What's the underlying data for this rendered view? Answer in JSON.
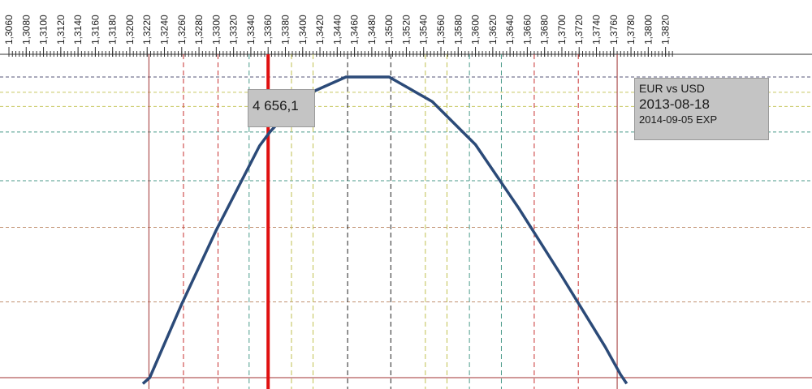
{
  "chart_data": {
    "type": "line",
    "x_tick_labels": [
      "1,3060",
      "1,3080",
      "1,3100",
      "1,3120",
      "1,3140",
      "1,3160",
      "1,3180",
      "1,3200",
      "1,3220",
      "1,3240",
      "1,3260",
      "1,3280",
      "1,3300",
      "1,3320",
      "1,3340",
      "1,3360",
      "1,3380",
      "1,3400",
      "1,3420",
      "1,3440",
      "1,3460",
      "1,3480",
      "1,3500",
      "1,3520",
      "1,3540",
      "1,3560",
      "1,3580",
      "1,3600",
      "1,3620",
      "1,3640",
      "1,3660",
      "1,3680",
      "1,3700",
      "1,3720",
      "1,3740",
      "1,3760",
      "1,3780",
      "1,3800",
      "1,3820"
    ],
    "x_ticks": [
      1.306,
      1.308,
      1.31,
      1.312,
      1.314,
      1.316,
      1.318,
      1.32,
      1.322,
      1.324,
      1.326,
      1.328,
      1.33,
      1.332,
      1.334,
      1.336,
      1.338,
      1.34,
      1.342,
      1.344,
      1.346,
      1.348,
      1.35,
      1.352,
      1.354,
      1.356,
      1.358,
      1.36,
      1.362,
      1.364,
      1.366,
      1.368,
      1.37,
      1.372,
      1.374,
      1.376,
      1.378,
      1.38,
      1.382
    ],
    "xlim": [
      1.306,
      1.383
    ],
    "ylim_norm": [
      0,
      1
    ],
    "series": [
      {
        "color": "#2b4a78",
        "x": [
          1.3215,
          1.3223,
          1.326,
          1.33,
          1.335,
          1.3362,
          1.34,
          1.345,
          1.35,
          1.355,
          1.36,
          1.365,
          1.37,
          1.375,
          1.3768,
          1.3775
        ],
        "y": [
          -0.02,
          0.0,
          0.245,
          0.491,
          0.771,
          0.817,
          0.936,
          1.0,
          1.0,
          0.918,
          0.775,
          0.564,
          0.337,
          0.103,
          0.01,
          -0.02
        ]
      }
    ],
    "vlines": [
      {
        "x": 1.3222,
        "color": "#a03030",
        "style": "solid",
        "width": 1
      },
      {
        "x": 1.3262,
        "color": "#c83030",
        "style": "dashed",
        "width": 1
      },
      {
        "x": 1.3302,
        "color": "#c83030",
        "style": "dashed",
        "width": 1
      },
      {
        "x": 1.3338,
        "color": "#4a9a8a",
        "style": "dashed",
        "width": 1
      },
      {
        "x": 1.336,
        "color": "#e01010",
        "style": "solid",
        "width": 4
      },
      {
        "x": 1.3387,
        "color": "#c0c050",
        "style": "dashed",
        "width": 1
      },
      {
        "x": 1.3412,
        "color": "#c0c050",
        "style": "dashed",
        "width": 1
      },
      {
        "x": 1.3452,
        "color": "#222222",
        "style": "dashed",
        "width": 1
      },
      {
        "x": 1.3502,
        "color": "#222222",
        "style": "dashed",
        "width": 1
      },
      {
        "x": 1.3542,
        "color": "#c0c050",
        "style": "dashed",
        "width": 1
      },
      {
        "x": 1.3567,
        "color": "#c0c050",
        "style": "dashed",
        "width": 1
      },
      {
        "x": 1.3593,
        "color": "#4a9a8a",
        "style": "dashed",
        "width": 1
      },
      {
        "x": 1.363,
        "color": "#4a9a8a",
        "style": "dashed",
        "width": 1
      },
      {
        "x": 1.3668,
        "color": "#c83030",
        "style": "dashed",
        "width": 1
      },
      {
        "x": 1.3719,
        "color": "#c83030",
        "style": "dashed",
        "width": 1
      },
      {
        "x": 1.3764,
        "color": "#a03030",
        "style": "solid",
        "width": 1
      }
    ],
    "hlines": [
      {
        "y": 1.0,
        "color": "#555577",
        "style": "dashed"
      },
      {
        "y": 0.949,
        "color": "#c8c860",
        "style": "dashed"
      },
      {
        "y": 0.902,
        "color": "#c8c860",
        "style": "dashed"
      },
      {
        "y": 0.817,
        "color": "#4a9a8a",
        "style": "dashed"
      },
      {
        "y": 0.655,
        "color": "#4a9a8a",
        "style": "dashed"
      },
      {
        "y": 0.5,
        "color": "#c09070",
        "style": "dashed"
      },
      {
        "y": 0.252,
        "color": "#c09070",
        "style": "dashed"
      },
      {
        "y": 0.0,
        "color": "#a03030",
        "style": "solid"
      }
    ],
    "value_label": "4 656,1",
    "info_lines": [
      "EUR vs USD",
      "2013-08-18",
      "2014-09-05 EXP"
    ]
  }
}
